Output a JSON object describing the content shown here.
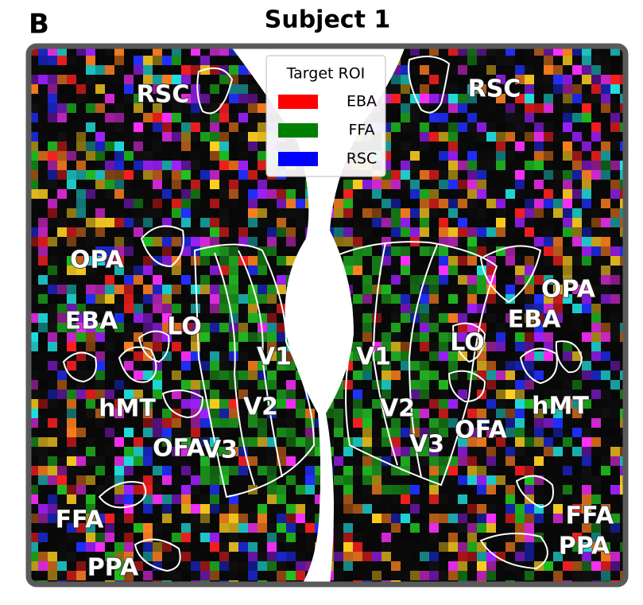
{
  "panel": "B",
  "title": "Subject 1",
  "legend": {
    "title": "Target ROI",
    "entries": [
      {
        "name": "EBA",
        "color": "#ff0000"
      },
      {
        "name": "FFA",
        "color": "#008000"
      },
      {
        "name": "RSC",
        "color": "#0000ff"
      }
    ]
  },
  "left_labels": [
    "RSC",
    "OPA",
    "EBA",
    "LO",
    "hMT",
    "OFA",
    "FFA",
    "PPA",
    "V1",
    "V2",
    "V3"
  ],
  "right_labels": [
    "RSC",
    "OPA",
    "EBA",
    "LO",
    "hMT",
    "OFA",
    "FFA",
    "PPA",
    "V1",
    "V2",
    "V3"
  ]
}
